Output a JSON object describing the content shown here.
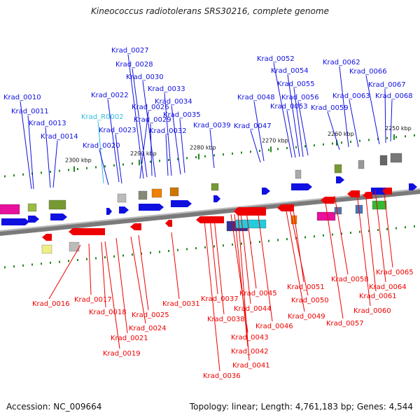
{
  "title": "Kineococcus radiotolerans SRS30216, complete genome",
  "accession_label": "Accession: NC_009664",
  "summary_label": "Topology: linear; Length: 4,761,183 bp; Genes: 4,544",
  "colors": {
    "forward": "#1010e0",
    "reverse": "#ee0000",
    "rna": "#33bbdd",
    "backbone": "#7a7a7a",
    "tick": "#228822"
  },
  "ruler_labels": [
    "2250 kbp",
    "2260 kbp",
    "2270 kbp",
    "2280 kbp",
    "2290 kbp",
    "2300 kbp"
  ],
  "forward_genes": [
    "Krad_0010",
    "Krad_0011",
    "Krad_0013",
    "Krad_0014",
    "Krad_R0002",
    "Krad_0020",
    "Krad_0022",
    "Krad_0023",
    "Krad_0026",
    "Krad_0027",
    "Krad_0028",
    "Krad_0029",
    "Krad_0030",
    "Krad_0032",
    "Krad_0033",
    "Krad_0034",
    "Krad_0035",
    "Krad_0039",
    "Krad_0047",
    "Krad_0048",
    "Krad_0052",
    "Krad_0053",
    "Krad_0054",
    "Krad_0055",
    "Krad_0056",
    "Krad_0059",
    "Krad_0062",
    "Krad_0063",
    "Krad_0066",
    "Krad_0067",
    "Krad_0068"
  ],
  "reverse_genes": [
    "Krad_0016",
    "Krad_0017",
    "Krad_0018",
    "Krad_0019",
    "Krad_0021",
    "Krad_0024",
    "Krad_0025",
    "Krad_0031",
    "Krad_0036",
    "Krad_0037",
    "Krad_0038",
    "Krad_0041",
    "Krad_0042",
    "Krad_0043",
    "Krad_0044",
    "Krad_0045",
    "Krad_0046",
    "Krad_0049",
    "Krad_0050",
    "Krad_0051",
    "Krad_0057",
    "Krad_0058",
    "Krad_0060",
    "Krad_0061",
    "Krad_0064",
    "Krad_0065"
  ]
}
